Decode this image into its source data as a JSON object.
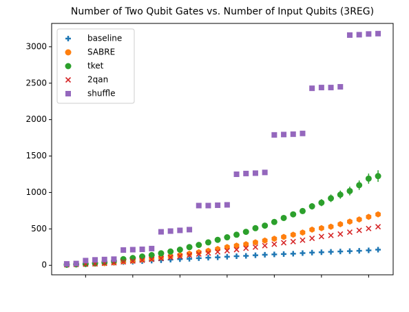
{
  "chart_data": {
    "type": "scatter",
    "title": "Number of Two Qubit Gates vs. Number of Input Qubits (3REG)",
    "x": [
      1,
      2,
      3,
      4,
      5,
      6,
      7,
      8,
      9,
      10,
      11,
      12,
      13,
      14,
      15,
      16,
      17,
      18,
      19,
      20,
      21,
      22,
      23,
      24,
      25,
      26,
      27,
      28,
      29,
      30,
      31,
      32,
      33,
      34
    ],
    "xlim": [
      -0.6,
      35.6
    ],
    "xticks": [
      3,
      8,
      13,
      18,
      23,
      28,
      33
    ],
    "ylim": [
      -130,
      3320
    ],
    "yticks": [
      0,
      500,
      1000,
      1500,
      2000,
      2500,
      3000
    ],
    "legend": "upper left",
    "series": [
      {
        "name": "baseline",
        "color": "#1f77b4",
        "marker": "plus",
        "values": [
          5,
          10,
          15,
          20,
          28,
          35,
          45,
          50,
          58,
          65,
          70,
          78,
          85,
          90,
          98,
          105,
          110,
          118,
          125,
          130,
          138,
          145,
          150,
          155,
          160,
          168,
          175,
          180,
          185,
          190,
          195,
          200,
          205,
          215
        ]
      },
      {
        "name": "SABRE",
        "color": "#ff7f0e",
        "marker": "hexagon",
        "values": [
          8,
          12,
          16,
          22,
          30,
          40,
          55,
          65,
          80,
          95,
          110,
          125,
          140,
          160,
          180,
          200,
          225,
          250,
          270,
          290,
          315,
          340,
          365,
          390,
          420,
          450,
          490,
          510,
          530,
          565,
          600,
          630,
          665,
          700
        ],
        "errors": [
          1,
          1,
          1,
          2,
          2,
          3,
          3,
          4,
          4,
          5,
          5,
          6,
          6,
          7,
          8,
          9,
          10,
          11,
          12,
          13,
          14,
          15,
          16,
          17,
          18,
          19,
          20,
          22,
          24,
          26,
          28,
          30,
          32,
          35
        ]
      },
      {
        "name": "tket",
        "color": "#2ca02c",
        "marker": "circle",
        "values": [
          10,
          15,
          20,
          30,
          45,
          60,
          85,
          100,
          120,
          140,
          165,
          190,
          215,
          250,
          280,
          315,
          350,
          385,
          420,
          460,
          510,
          545,
          595,
          650,
          700,
          745,
          810,
          860,
          920,
          970,
          1020,
          1100,
          1190,
          1225
        ],
        "errors": [
          2,
          2,
          2,
          3,
          4,
          5,
          6,
          7,
          8,
          9,
          10,
          11,
          12,
          14,
          15,
          16,
          18,
          20,
          22,
          24,
          26,
          28,
          30,
          33,
          36,
          40,
          44,
          48,
          52,
          56,
          60,
          65,
          70,
          80
        ]
      },
      {
        "name": "2qan",
        "color": "#d62728",
        "marker": "x",
        "values": [
          8,
          12,
          16,
          20,
          28,
          35,
          48,
          58,
          70,
          82,
          95,
          110,
          125,
          140,
          155,
          170,
          185,
          200,
          215,
          235,
          250,
          270,
          290,
          310,
          325,
          345,
          370,
          395,
          410,
          430,
          455,
          480,
          505,
          530
        ]
      },
      {
        "name": "shuffle",
        "color": "#9467bd",
        "marker": "square",
        "values": [
          20,
          25,
          65,
          75,
          80,
          85,
          210,
          215,
          220,
          230,
          460,
          470,
          480,
          490,
          820,
          820,
          825,
          830,
          1250,
          1260,
          1265,
          1275,
          1790,
          1795,
          1800,
          1810,
          2430,
          2440,
          2440,
          2450,
          3160,
          3165,
          3175,
          3180
        ]
      }
    ]
  }
}
